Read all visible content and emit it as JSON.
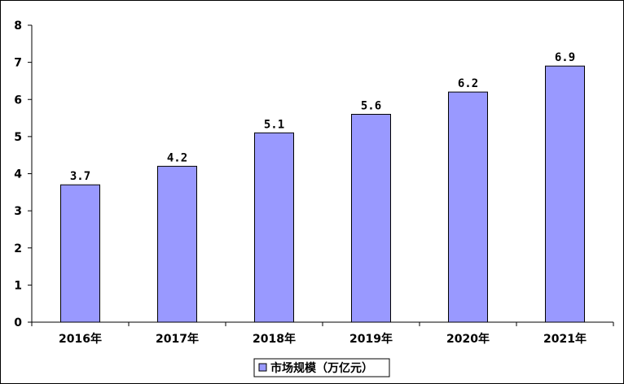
{
  "chart_data": {
    "type": "bar",
    "categories": [
      "2016年",
      "2017年",
      "2018年",
      "2019年",
      "2020年",
      "2021年"
    ],
    "series": [
      {
        "name": "市场规模（万亿元）",
        "values": [
          3.7,
          4.2,
          5.1,
          5.6,
          6.2,
          6.9
        ],
        "labels": [
          "3.7",
          "4.2",
          "5.1",
          "5.6",
          "6.2",
          "6.9"
        ],
        "color": "#9999ff"
      }
    ],
    "y_ticks": [
      "0",
      "1",
      "2",
      "3",
      "4",
      "5",
      "6",
      "7",
      "8"
    ],
    "ylim": [
      0,
      8
    ],
    "grid": false,
    "legend_position": "bottom"
  }
}
